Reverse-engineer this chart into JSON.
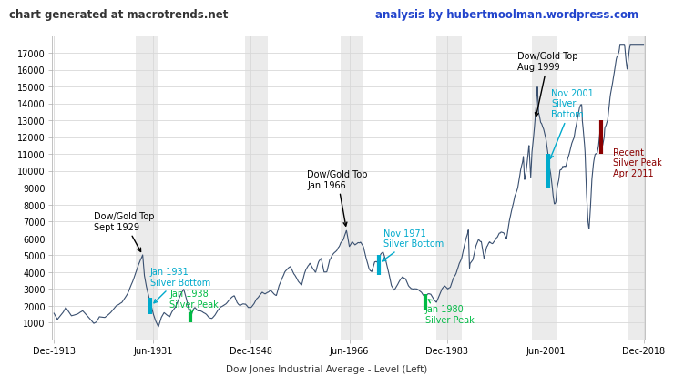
{
  "title_left": "chart generated at macrotrends.net",
  "title_right": "analysis by hubertmoolman.wordpress.com",
  "xlabel_ticks": [
    "Dec-1913",
    "Jun-1931",
    "Dec-1948",
    "Jun-1966",
    "Dec-1983",
    "Jun-2001",
    "Dec-2018"
  ],
  "x_tick_positions": [
    1913.92,
    1931.5,
    1948.92,
    1966.5,
    1983.92,
    2001.5,
    2018.92
  ],
  "yticks": [
    1000,
    2000,
    3000,
    4000,
    5000,
    6000,
    7000,
    8000,
    9000,
    10000,
    11000,
    12000,
    13000,
    14000,
    15000,
    16000,
    17000
  ],
  "legend_label": "Dow Jones Industrial Average - Level (Left)",
  "background_color": "#ffffff",
  "grid_color": "#d8d8d8",
  "line_color": "#3a5070",
  "shade_color": "#d8d8d8",
  "shade_alpha": 0.5,
  "shade_bands": [
    [
      1928.5,
      1932.5
    ],
    [
      1948.0,
      1952.0
    ],
    [
      1965.0,
      1969.0
    ],
    [
      1982.0,
      1986.5
    ],
    [
      1999.0,
      2003.5
    ],
    [
      2016.0,
      2018.9
    ]
  ],
  "xlim": [
    1913.5,
    2019.2
  ],
  "ylim": [
    0,
    18000
  ],
  "scale_factor": 13.15
}
